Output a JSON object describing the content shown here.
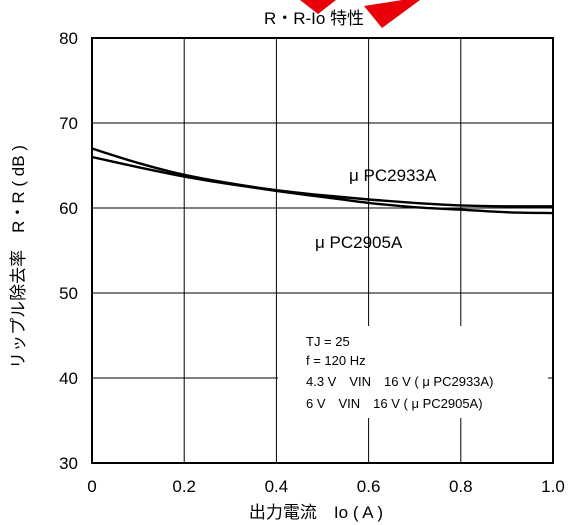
{
  "chart_data": {
    "type": "line",
    "title": "R・R-Io  特性",
    "xlabel": "出力電流　Io ( A )",
    "ylabel": "リップル除去率　R・R ( dB )",
    "xlim": [
      0,
      1.0
    ],
    "ylim": [
      30,
      80
    ],
    "xticks": [
      "0",
      "0.2",
      "0.4",
      "0.6",
      "0.8",
      "1.0"
    ],
    "yticks": [
      "30",
      "40",
      "50",
      "60",
      "70",
      "80"
    ],
    "grid": true,
    "series": [
      {
        "name": "μ PC2933A",
        "x": [
          0,
          0.1,
          0.2,
          0.3,
          0.4,
          0.5,
          0.6,
          0.7,
          0.8,
          0.9,
          1.0
        ],
        "values": [
          67.0,
          65.3,
          63.9,
          62.9,
          62.1,
          61.5,
          61.0,
          60.6,
          60.3,
          60.2,
          60.2
        ]
      },
      {
        "name": "μ PC2905A",
        "x": [
          0,
          0.1,
          0.2,
          0.3,
          0.4,
          0.5,
          0.6,
          0.7,
          0.8,
          0.9,
          1.0
        ],
        "values": [
          66.0,
          64.8,
          63.7,
          62.8,
          62.0,
          61.3,
          60.6,
          60.1,
          59.8,
          59.5,
          59.4
        ]
      }
    ],
    "annotations": [
      "TJ = 25",
      "f = 120 Hz",
      "4.3 V　VIN　16 V ( μ PC2933A)",
      "6 V　VIN　16 V ( μ PC2905A)"
    ],
    "colors": {
      "line": "#000000",
      "grid": "#000000",
      "watermark": "#e8000a"
    }
  }
}
